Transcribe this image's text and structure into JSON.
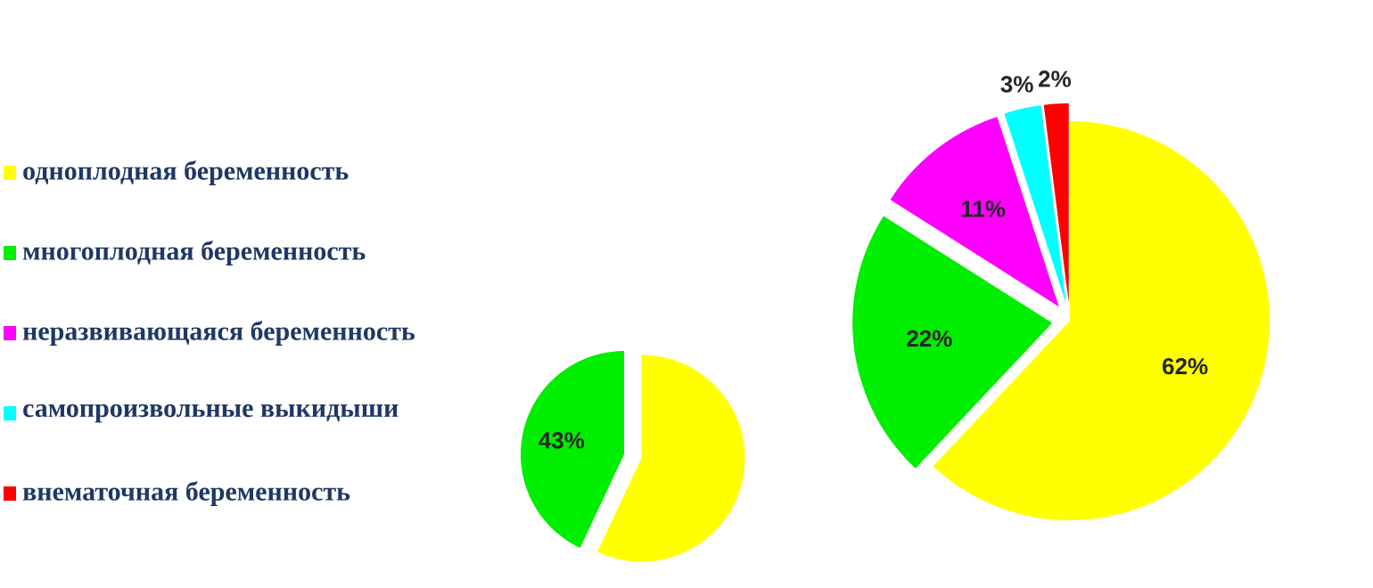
{
  "chart_data": [
    {
      "type": "pie",
      "categories": [
        "одноплодная беременность",
        "многоплодная беременность",
        "неразвивающаяся беременность",
        "самопроизвольные выкидыши",
        "внематочная беременность"
      ],
      "values": [
        62,
        22,
        11,
        3,
        2
      ],
      "colors": [
        "#ffff00",
        "#00ee00",
        "#ff00ff",
        "#00ffff",
        "#ff0000"
      ],
      "value_labels": [
        "62%",
        "22%",
        "11%",
        "3%",
        "2%"
      ],
      "legend": "left"
    },
    {
      "type": "pie",
      "categories": [
        null,
        null
      ],
      "values": [
        57,
        43
      ],
      "colors": [
        "#ffff00",
        "#00ee00"
      ],
      "value_labels": [
        null,
        "43%"
      ]
    }
  ]
}
